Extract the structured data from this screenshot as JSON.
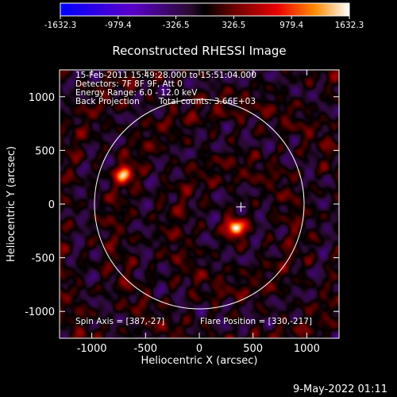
{
  "chart_data": {
    "type": "heatmap",
    "title": "Reconstructed RHESSI Image",
    "xlabel": "Heliocentric X (arcsec)",
    "ylabel": "Heliocentric Y (arcsec)",
    "xlim": [
      -1300,
      1300
    ],
    "ylim": [
      -1250,
      1250
    ],
    "xticks": [
      -1000,
      -500,
      0,
      500,
      1000
    ],
    "yticks": [
      -1000,
      -500,
      0,
      500,
      1000
    ],
    "colorbar": {
      "range": [
        -1632.3,
        1632.3
      ],
      "ticks": [
        "-1632.3",
        "-979.4",
        "-326.5",
        "326.5",
        "979.4",
        "1632.3"
      ]
    },
    "annotations": {
      "line1": "15-Feb-2011 15:49:28.000 to 15:51:04.000",
      "line2": "Detectors: 7F 8F 9F, Att 0",
      "line3": "Energy Range: 6.0 - 12.0 keV",
      "line4_left": "Back Projection",
      "line4_right": "Total counts: 3.66E+03",
      "spin_axis": "Spin Axis = [387,-27]",
      "flare_position": "Flare Position = [330,-217]"
    },
    "solar_limb_radius_arcsec": 975,
    "sources": [
      {
        "x": 330,
        "y": -217,
        "value": 1632.3
      },
      {
        "x": -700,
        "y": 280,
        "value": 1300
      }
    ],
    "crosshair": {
      "x": 387,
      "y": -27
    }
  },
  "footer": {
    "timestamp": "9-May-2022 01:11"
  }
}
